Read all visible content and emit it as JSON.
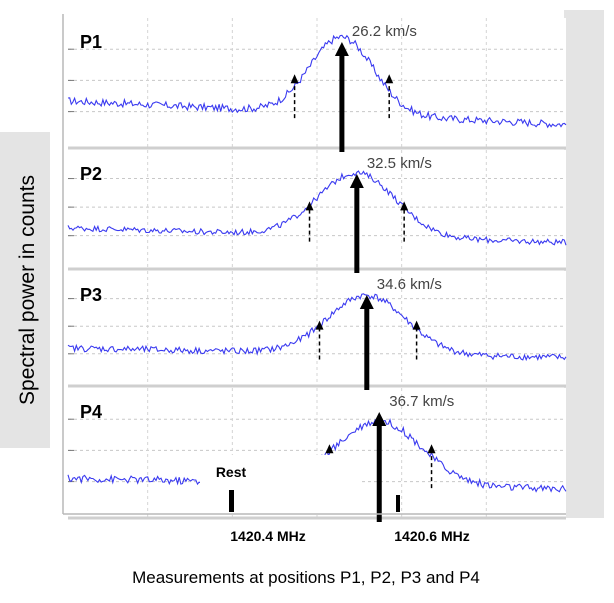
{
  "chart_data": {
    "type": "line",
    "ylabel": "Spectral power in counts",
    "caption": "Measurements at positions P1, P2, P3 and P4",
    "x_ticks": [
      "1420.4 MHz",
      "1420.6 MHz"
    ],
    "rest_label": "Rest",
    "grid": true,
    "line_color": "#3a3af0",
    "background": "#e8e8e8",
    "panels": [
      {
        "name": "P1",
        "velocity_label": "26.2 km/s",
        "peak_position": 0.55,
        "width": 0.09,
        "amplitude": 0.72,
        "noise": 0.035,
        "left_level": 0.32,
        "right_level": 0.1,
        "side_markers": [
          0.455,
          0.645
        ]
      },
      {
        "name": "P2",
        "velocity_label": "32.5 km/s",
        "peak_position": 0.58,
        "width": 0.11,
        "amplitude": 0.65,
        "noise": 0.03,
        "left_level": 0.3,
        "right_level": 0.15,
        "side_markers": [
          0.485,
          0.675
        ]
      },
      {
        "name": "P3",
        "velocity_label": "34.6 km/s",
        "peak_position": 0.6,
        "width": 0.11,
        "amplitude": 0.62,
        "noise": 0.035,
        "left_level": 0.28,
        "right_level": 0.18,
        "side_markers": [
          0.505,
          0.7
        ]
      },
      {
        "name": "P4",
        "velocity_label": "36.7 km/s",
        "peak_position": 0.625,
        "width": 0.12,
        "amplitude": 0.6,
        "noise": 0.035,
        "left_level": 0.25,
        "right_level": 0.15,
        "side_markers": [
          0.525,
          0.73
        ]
      }
    ]
  }
}
